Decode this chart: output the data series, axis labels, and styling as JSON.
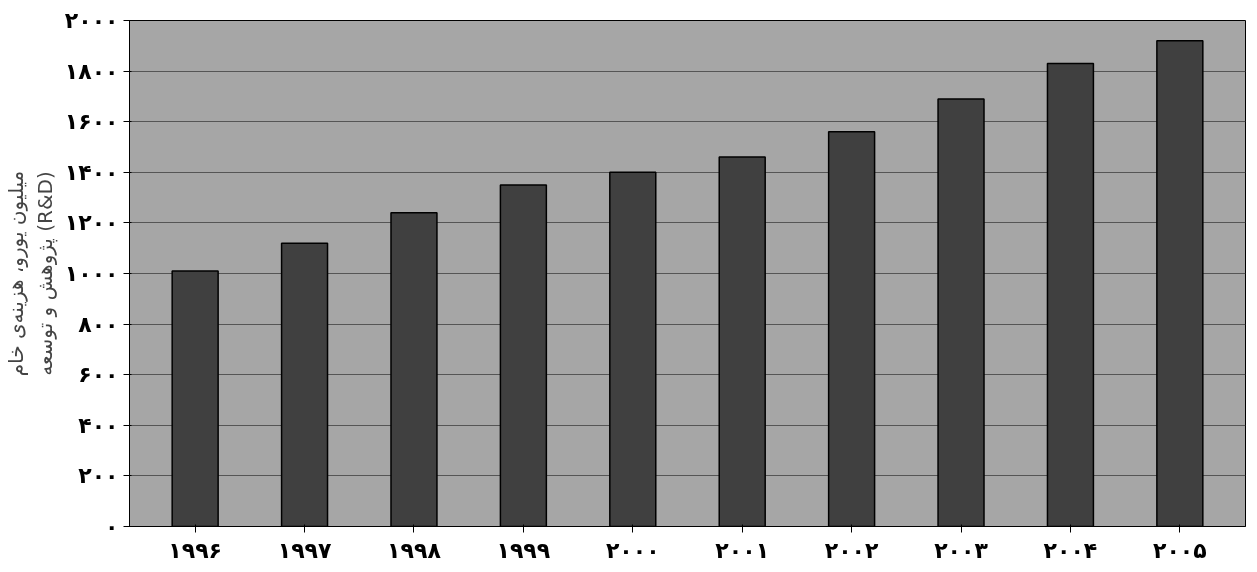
{
  "chart_data": {
    "type": "bar",
    "ylabel": "میلیون یورو، هزینه‌ی خام\nپژوهش و توسعه (R&D)",
    "categories": [
      "۱۹۹۶",
      "۱۹۹۷",
      "۱۹۹۸",
      "۱۹۹۹",
      "۲۰۰۰",
      "۲۰۰۱",
      "۲۰۰۲",
      "۲۰۰۳",
      "۲۰۰۴",
      "۲۰۰۵"
    ],
    "values": [
      1010,
      1120,
      1240,
      1350,
      1400,
      1460,
      1560,
      1690,
      1830,
      1920
    ],
    "color": "#404040",
    "ylim": [
      0,
      2000
    ],
    "yticks": [
      {
        "value": 0,
        "label": "۰"
      },
      {
        "value": 200,
        "label": "۲۰۰"
      },
      {
        "value": 400,
        "label": "۴۰۰"
      },
      {
        "value": 600,
        "label": "۶۰۰"
      },
      {
        "value": 800,
        "label": "۸۰۰"
      },
      {
        "value": 1000,
        "label": "۱۰۰۰"
      },
      {
        "value": 1200,
        "label": "۱۲۰۰"
      },
      {
        "value": 1400,
        "label": "۱۴۰۰"
      },
      {
        "value": 1600,
        "label": "۱۶۰۰"
      },
      {
        "value": 1800,
        "label": "۱۸۰۰"
      },
      {
        "value": 2000,
        "label": "۲۰۰۰"
      }
    ],
    "grid": "y"
  }
}
